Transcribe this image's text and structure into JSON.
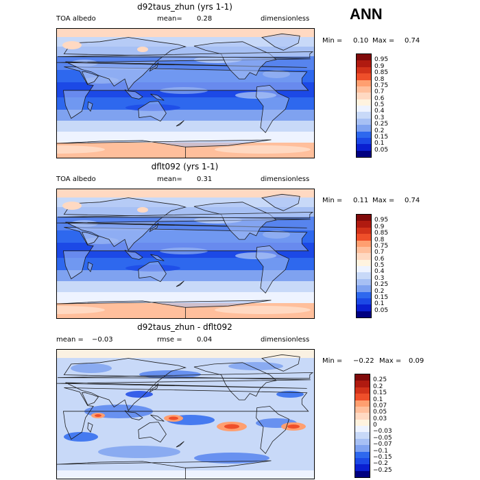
{
  "season": "ANN",
  "colors": {
    "abs": [
      "#000080",
      "#0a1fd0",
      "#1c49e6",
      "#2e68ee",
      "#5784ee",
      "#7fa2f0",
      "#a7c0f4",
      "#c8d9f8",
      "#eef3ff",
      "#fff3df",
      "#ffd9c2",
      "#ffbf9c",
      "#ff9f70",
      "#fd7b48",
      "#ef4f2a",
      "#d2321a",
      "#b01a10",
      "#800a0a"
    ],
    "diff": [
      "#000080",
      "#0a1fd0",
      "#1c49e6",
      "#2e68ee",
      "#5784ee",
      "#7fa2f0",
      "#a7c0f4",
      "#c8d9f8",
      "#eef3ff",
      "#fff3df",
      "#ffd9c2",
      "#ffbf9c",
      "#ff9f70",
      "#fd7b48",
      "#ef4f2a",
      "#d2321a",
      "#b01a10",
      "#800a0a"
    ],
    "land_outline": "#1a1a1a"
  },
  "panels": [
    {
      "id": "top",
      "title": "d92taus_zhun (yrs 1-1)",
      "left_label": "TOA albedo",
      "mean_label": "mean=",
      "mean_value": "0.28",
      "units": "dimensionless",
      "min_label": "Min =",
      "min_value": "0.10",
      "max_label": "Max =",
      "max_value": "0.74",
      "levels": [
        "0.95",
        "0.9",
        "0.85",
        "0.8",
        "0.75",
        "0.7",
        "0.6",
        "0.5",
        "0.4",
        "0.3",
        "0.25",
        "0.2",
        "0.15",
        "0.1",
        "0.05"
      ]
    },
    {
      "id": "middle",
      "title": "dflt092 (yrs 1-1)",
      "left_label": "TOA albedo",
      "mean_label": "mean=",
      "mean_value": "0.31",
      "units": "dimensionless",
      "min_label": "Min =",
      "min_value": "0.11",
      "max_label": "Max =",
      "max_value": "0.74",
      "levels": [
        "0.95",
        "0.9",
        "0.85",
        "0.8",
        "0.75",
        "0.7",
        "0.6",
        "0.5",
        "0.4",
        "0.3",
        "0.25",
        "0.2",
        "0.15",
        "0.1",
        "0.05"
      ]
    },
    {
      "id": "bottom",
      "title": "d92taus_zhun - dflt092",
      "left_label": "mean =",
      "mean_label": "",
      "mean_value": "−0.03",
      "rmse_label": "rmse =",
      "rmse_value": "0.04",
      "units": "dimensionless",
      "min_label": "Min =",
      "min_value": "−0.22",
      "max_label": "Max =",
      "max_value": "0.09",
      "levels": [
        "0.25",
        "0.2",
        "0.15",
        "0.1",
        "0.07",
        "0.05",
        "0.03",
        "0",
        "−0.03",
        "−0.05",
        "−0.07",
        "−0.1",
        "−0.15",
        "−0.2",
        "−0.25"
      ]
    }
  ]
}
